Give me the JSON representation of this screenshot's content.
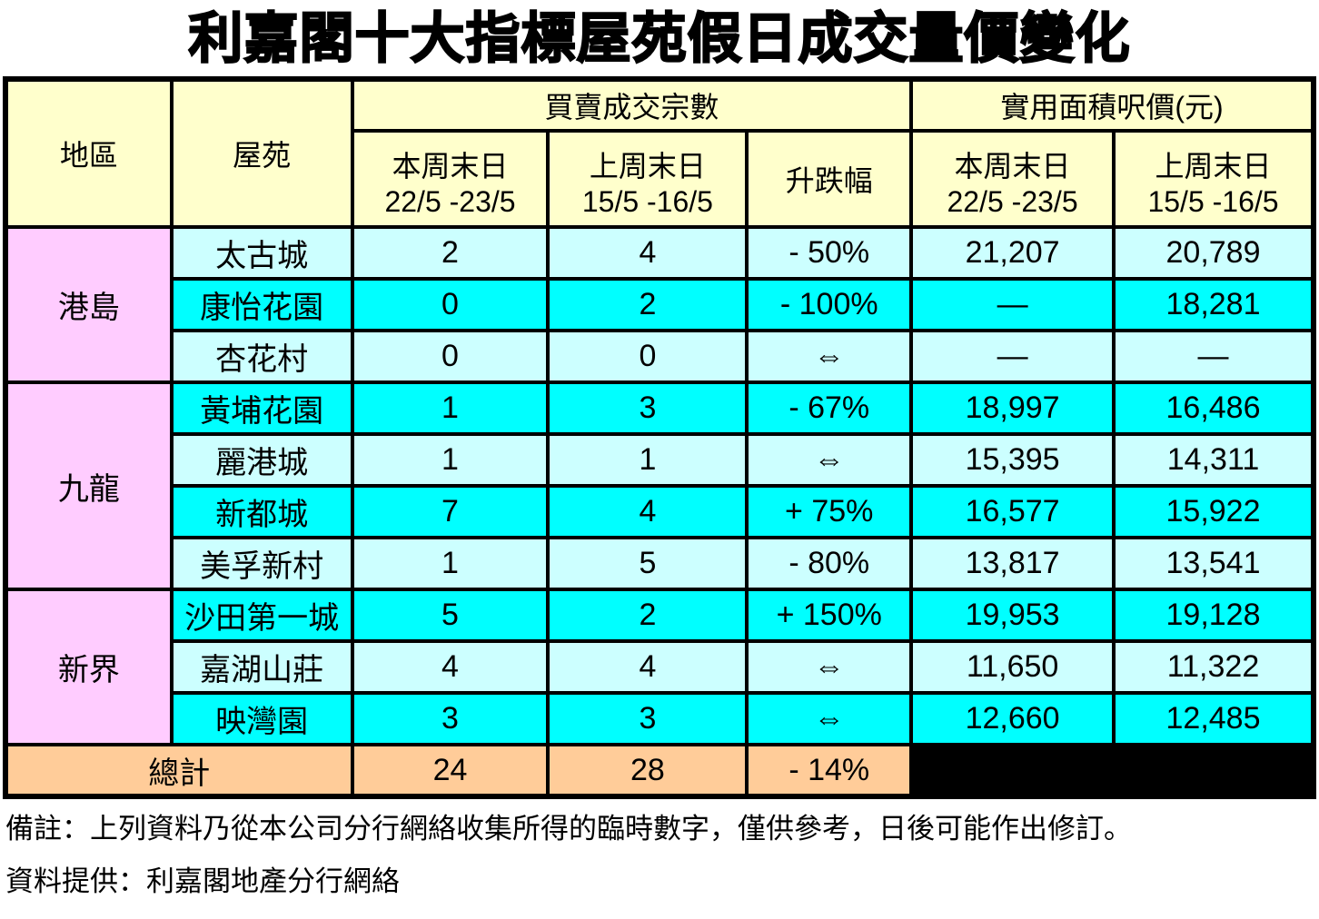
{
  "title": "利嘉閣十大指標屋苑假日成交量價變化",
  "table": {
    "headers": {
      "district": "地區",
      "estate": "屋苑",
      "transactions_group": "買賣成交宗數",
      "price_group": "實用面積呎價(元)",
      "this_weekend_label": "本周末日",
      "this_weekend_dates": "22/5 -23/5",
      "last_weekend_label": "上周末日",
      "last_weekend_dates": "15/5 -16/5",
      "change_label": "升跌幅"
    },
    "groups": [
      {
        "district": "港島",
        "rows": [
          {
            "estate": "太古城",
            "tx_this_week": "2",
            "tx_last_week": "4",
            "change": "- 50%",
            "price_this_week": "21,207",
            "price_last_week": "20,789",
            "highlight": false
          },
          {
            "estate": "康怡花園",
            "tx_this_week": "0",
            "tx_last_week": "2",
            "change": "- 100%",
            "price_this_week": "—",
            "price_last_week": "18,281",
            "highlight": true
          },
          {
            "estate": "杏花村",
            "tx_this_week": "0",
            "tx_last_week": "0",
            "change": "⇔",
            "price_this_week": "—",
            "price_last_week": "—",
            "highlight": false
          }
        ]
      },
      {
        "district": "九龍",
        "rows": [
          {
            "estate": "黃埔花園",
            "tx_this_week": "1",
            "tx_last_week": "3",
            "change": "- 67%",
            "price_this_week": "18,997",
            "price_last_week": "16,486",
            "highlight": true
          },
          {
            "estate": "麗港城",
            "tx_this_week": "1",
            "tx_last_week": "1",
            "change": "⇔",
            "price_this_week": "15,395",
            "price_last_week": "14,311",
            "highlight": false
          },
          {
            "estate": "新都城",
            "tx_this_week": "7",
            "tx_last_week": "4",
            "change": "+ 75%",
            "price_this_week": "16,577",
            "price_last_week": "15,922",
            "highlight": true
          },
          {
            "estate": "美孚新村",
            "tx_this_week": "1",
            "tx_last_week": "5",
            "change": "- 80%",
            "price_this_week": "13,817",
            "price_last_week": "13,541",
            "highlight": false
          }
        ]
      },
      {
        "district": "新界",
        "rows": [
          {
            "estate": "沙田第一城",
            "tx_this_week": "5",
            "tx_last_week": "2",
            "change": "+ 150%",
            "price_this_week": "19,953",
            "price_last_week": "19,128",
            "highlight": true
          },
          {
            "estate": "嘉湖山莊",
            "tx_this_week": "4",
            "tx_last_week": "4",
            "change": "⇔",
            "price_this_week": "11,650",
            "price_last_week": "11,322",
            "highlight": false
          },
          {
            "estate": "映灣園",
            "tx_this_week": "3",
            "tx_last_week": "3",
            "change": "⇔",
            "price_this_week": "12,660",
            "price_last_week": "12,485",
            "highlight": true
          }
        ]
      }
    ],
    "total": {
      "label": "總計",
      "tx_this_week": "24",
      "tx_last_week": "28",
      "change": "- 14%"
    }
  },
  "notes": {
    "remark": "備註：上列資料乃從本公司分行網絡收集所得的臨時數字，僅供參考，日後可能作出修訂。",
    "source": "資料提供：利嘉閣地產分行網絡"
  },
  "colors": {
    "header_bg": "#FFFFCC",
    "district_bg": "#FFCCFF",
    "row_light_bg": "#CCFFFF",
    "row_bright_bg": "#00FFFF",
    "total_bg": "#FFCC99",
    "blackout_bg": "#000000",
    "border": "#000000"
  }
}
